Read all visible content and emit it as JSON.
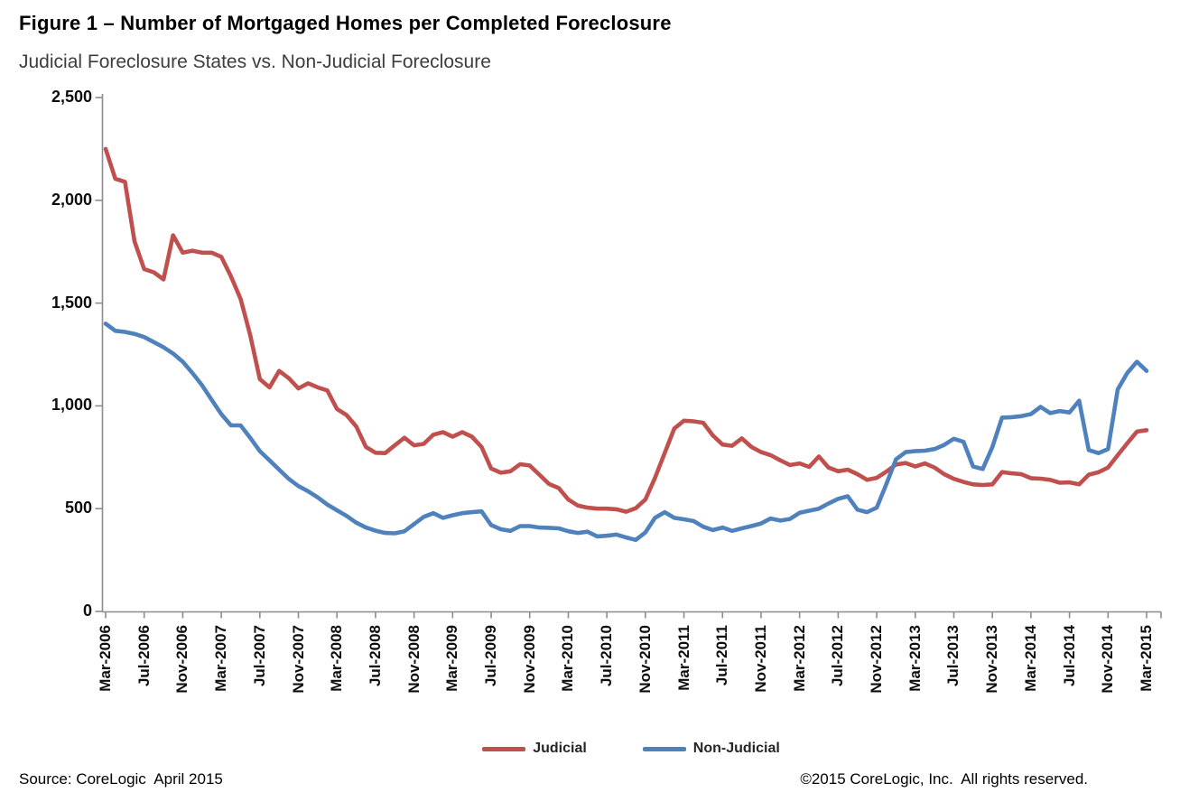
{
  "chart": {
    "title": "Figure 1 – Number of Mortgaged Homes per Completed Foreclosure",
    "subtitle": "Judicial Foreclosure States vs. Non-Judicial Foreclosure"
  },
  "footer": {
    "source": "Source: CoreLogic  April 2015",
    "copyright": "©2015 CoreLogic, Inc.  All rights reserved."
  },
  "chart_data": {
    "type": "line",
    "title": "Figure 1 – Number of Mortgaged Homes per Completed Foreclosure",
    "subtitle": "Judicial Foreclosure States vs. Non-Judicial Foreclosure",
    "x_start": "Mar-2006",
    "x_end": "Mar-2015",
    "x_resolution": "monthly",
    "x_tick_labels": [
      "Mar-2006",
      "Jul-2006",
      "Nov-2006",
      "Mar-2007",
      "Jul-2007",
      "Nov-2007",
      "Mar-2008",
      "Jul-2008",
      "Nov-2008",
      "Mar-2009",
      "Jul-2009",
      "Nov-2009",
      "Mar-2010",
      "Jul-2010",
      "Nov-2010",
      "Mar-2011",
      "Jul-2011",
      "Nov-2011",
      "Mar-2012",
      "Jul-2012",
      "Nov-2012",
      "Mar-2013",
      "Jul-2013",
      "Nov-2013",
      "Mar-2014",
      "Jul-2014",
      "Nov-2014",
      "Mar-2015"
    ],
    "ylim": [
      0,
      2500
    ],
    "y_tick_values": [
      0,
      500,
      1000,
      1500,
      2000,
      2500
    ],
    "y_tick_labels": [
      "0",
      "500",
      "1,000",
      "1,500",
      "2,000",
      "2,500"
    ],
    "grid": false,
    "legend_position": "bottom",
    "axis_color": "#8c8c8c",
    "series": [
      {
        "name": "Judicial",
        "color": "#C0504D",
        "values": [
          2250,
          2105,
          2090,
          1800,
          1665,
          1650,
          1615,
          1830,
          1745,
          1755,
          1745,
          1745,
          1725,
          1630,
          1520,
          1345,
          1130,
          1090,
          1170,
          1135,
          1085,
          1110,
          1090,
          1075,
          985,
          955,
          900,
          800,
          772,
          770,
          808,
          845,
          808,
          815,
          860,
          872,
          850,
          872,
          850,
          800,
          695,
          675,
          682,
          716,
          710,
          665,
          620,
          600,
          545,
          515,
          505,
          500,
          500,
          497,
          485,
          502,
          545,
          650,
          770,
          890,
          928,
          925,
          918,
          856,
          812,
          806,
          842,
          800,
          775,
          760,
          735,
          712,
          720,
          703,
          754,
          700,
          682,
          690,
          668,
          640,
          650,
          680,
          715,
          722,
          705,
          720,
          700,
          668,
          645,
          630,
          618,
          615,
          618,
          678,
          672,
          668,
          648,
          646,
          640,
          626,
          628,
          618,
          665,
          677,
          700,
          760,
          818,
          875,
          882
        ]
      },
      {
        "name": "Non-Judicial",
        "color": "#4F81BD",
        "values": [
          1400,
          1365,
          1360,
          1350,
          1335,
          1310,
          1285,
          1255,
          1215,
          1160,
          1100,
          1030,
          960,
          905,
          905,
          845,
          780,
          735,
          690,
          645,
          610,
          585,
          555,
          520,
          492,
          465,
          432,
          408,
          393,
          382,
          380,
          390,
          425,
          460,
          478,
          455,
          468,
          478,
          483,
          487,
          420,
          400,
          392,
          415,
          415,
          408,
          407,
          404,
          390,
          382,
          388,
          365,
          368,
          374,
          360,
          348,
          385,
          455,
          483,
          455,
          448,
          440,
          412,
          396,
          408,
          392,
          404,
          415,
          428,
          452,
          442,
          450,
          480,
          490,
          500,
          525,
          548,
          560,
          495,
          483,
          505,
          620,
          740,
          775,
          780,
          782,
          790,
          810,
          840,
          825,
          705,
          693,
          800,
          943,
          945,
          950,
          960,
          995,
          965,
          975,
          968,
          1025,
          785,
          770,
          790,
          1080,
          1160,
          1215,
          1170
        ]
      }
    ]
  }
}
